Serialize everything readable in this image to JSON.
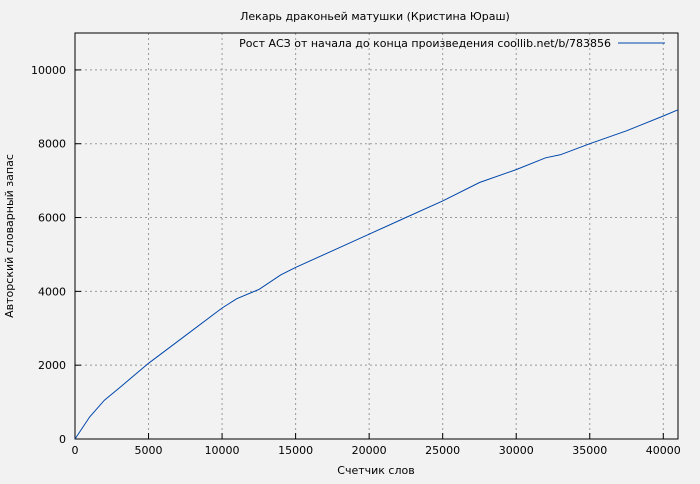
{
  "chart_data": {
    "type": "line",
    "title": "Лекарь драконьей матушки (Кристина Юраш)",
    "xlabel": "Счетчик слов",
    "ylabel": "Авторский словарный запас",
    "xlim": [
      0,
      41000
    ],
    "ylim": [
      0,
      11000
    ],
    "xticks": [
      0,
      5000,
      10000,
      15000,
      20000,
      25000,
      30000,
      35000,
      40000
    ],
    "yticks": [
      0,
      2000,
      4000,
      6000,
      8000,
      10000
    ],
    "grid": true,
    "legend_position": "top-right",
    "series": [
      {
        "name": "Рост АСЗ от начала до конца произведения coollib.net/b/783856",
        "color": "#0047ab",
        "x": [
          0,
          1000,
          2000,
          3000,
          5000,
          7500,
          10000,
          11000,
          12500,
          14000,
          15000,
          17500,
          20000,
          22500,
          25000,
          27500,
          30000,
          32000,
          33000,
          35000,
          37500,
          40000,
          41000
        ],
        "y": [
          0,
          600,
          1050,
          1380,
          2050,
          2800,
          3550,
          3800,
          4050,
          4450,
          4650,
          5100,
          5550,
          6000,
          6450,
          6950,
          7300,
          7620,
          7700,
          8000,
          8350,
          8750,
          8920
        ]
      }
    ]
  }
}
